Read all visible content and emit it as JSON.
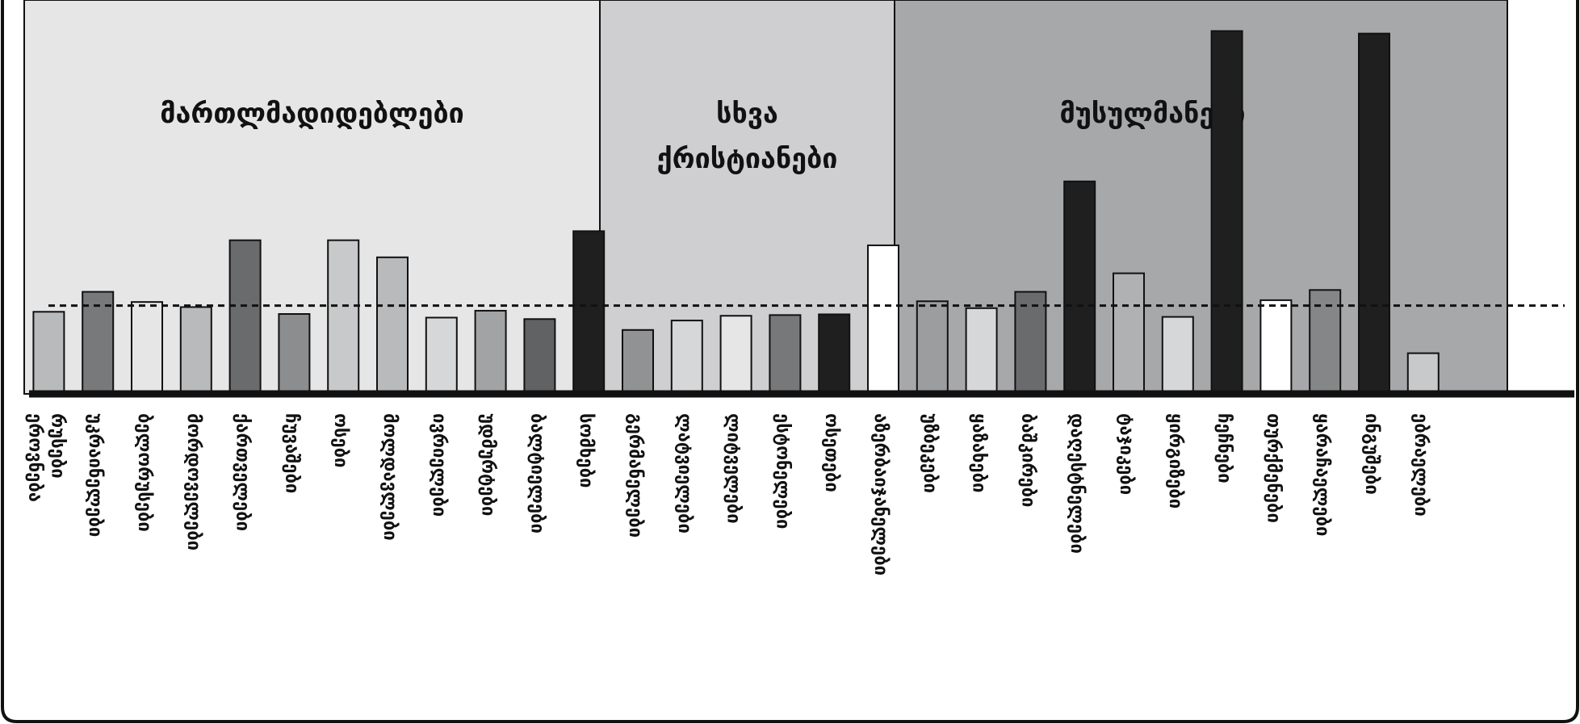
{
  "chart_data": {
    "type": "bar",
    "title": "",
    "xlabel": "",
    "ylabel": "",
    "ylim": [
      0,
      100
    ],
    "reference_line": 24.3,
    "groups": [
      {
        "name": "მართლმადიდებლები",
        "range": [
          0,
          10
        ],
        "color": "#e6e6e6"
      },
      {
        "name_lines": [
          "სხვა",
          "ქრისტიანები"
        ],
        "range": [
          11,
          15
        ],
        "color": "#cfcfd1"
      },
      {
        "name": "მუსულმანები",
        "range": [
          15,
          26
        ],
        "color": "#a7a8aa"
      }
    ],
    "categories": [
      "ეროვნება რუსები",
      "უკრაინელები",
      "ბელორუსები",
      "მორდოველები",
      "ქართველები",
      "ჩუვაშები",
      "ოსები",
      "მოლდავლები",
      "ივრიელები",
      "უდმურტები",
      "ბალტიელები",
      "სომხები",
      "გერმანელები",
      "ლატვიელები",
      "ლიტველები",
      "ესტონელები",
      "ოსეთები",
      "აზერბაიჯანელები",
      "უზბეკები",
      "ყაზახები",
      "ბაშკირები",
      "დაღესტნელები",
      "ტაჯიკები",
      "ყირგიზები",
      "ჩეჩნები",
      "თურქმენები",
      "ყარაჩაელები",
      "ინგუშები",
      "ებრაელები"
    ],
    "values": [
      22.6,
      28.1,
      25.3,
      23.9,
      42.3,
      22.0,
      42.3,
      37.6,
      21.0,
      22.9,
      20.6,
      44.8,
      17.6,
      20.2,
      21.5,
      21.7,
      21.9,
      40.9,
      25.5,
      23.6,
      28.1,
      58.5,
      33.2,
      21.2,
      99.9,
      25.8,
      28.6,
      99.2,
      11.2
    ],
    "bar_colors": [
      "#b9babc",
      "#78797b",
      "#e6e6e6",
      "#b9babc",
      "#6a6b6d",
      "#8c8d8f",
      "#c8c9cb",
      "#b9babc",
      "#d6d7d9",
      "#a2a3a5",
      "#616264",
      "#1f1f1f",
      "#919294",
      "#d6d7d9",
      "#e6e6e6",
      "#77787a",
      "#1f1f1f",
      "#ffffff",
      "#9c9d9f",
      "#d6d7d9",
      "#6a6b6d",
      "#1f1f1f",
      "#b0b1b3",
      "#d6d7d9",
      "#1f1f1f",
      "#ffffff",
      "#858688",
      "#1f1f1f",
      "#c8c9cb"
    ],
    "legend": "none",
    "grid": false
  }
}
